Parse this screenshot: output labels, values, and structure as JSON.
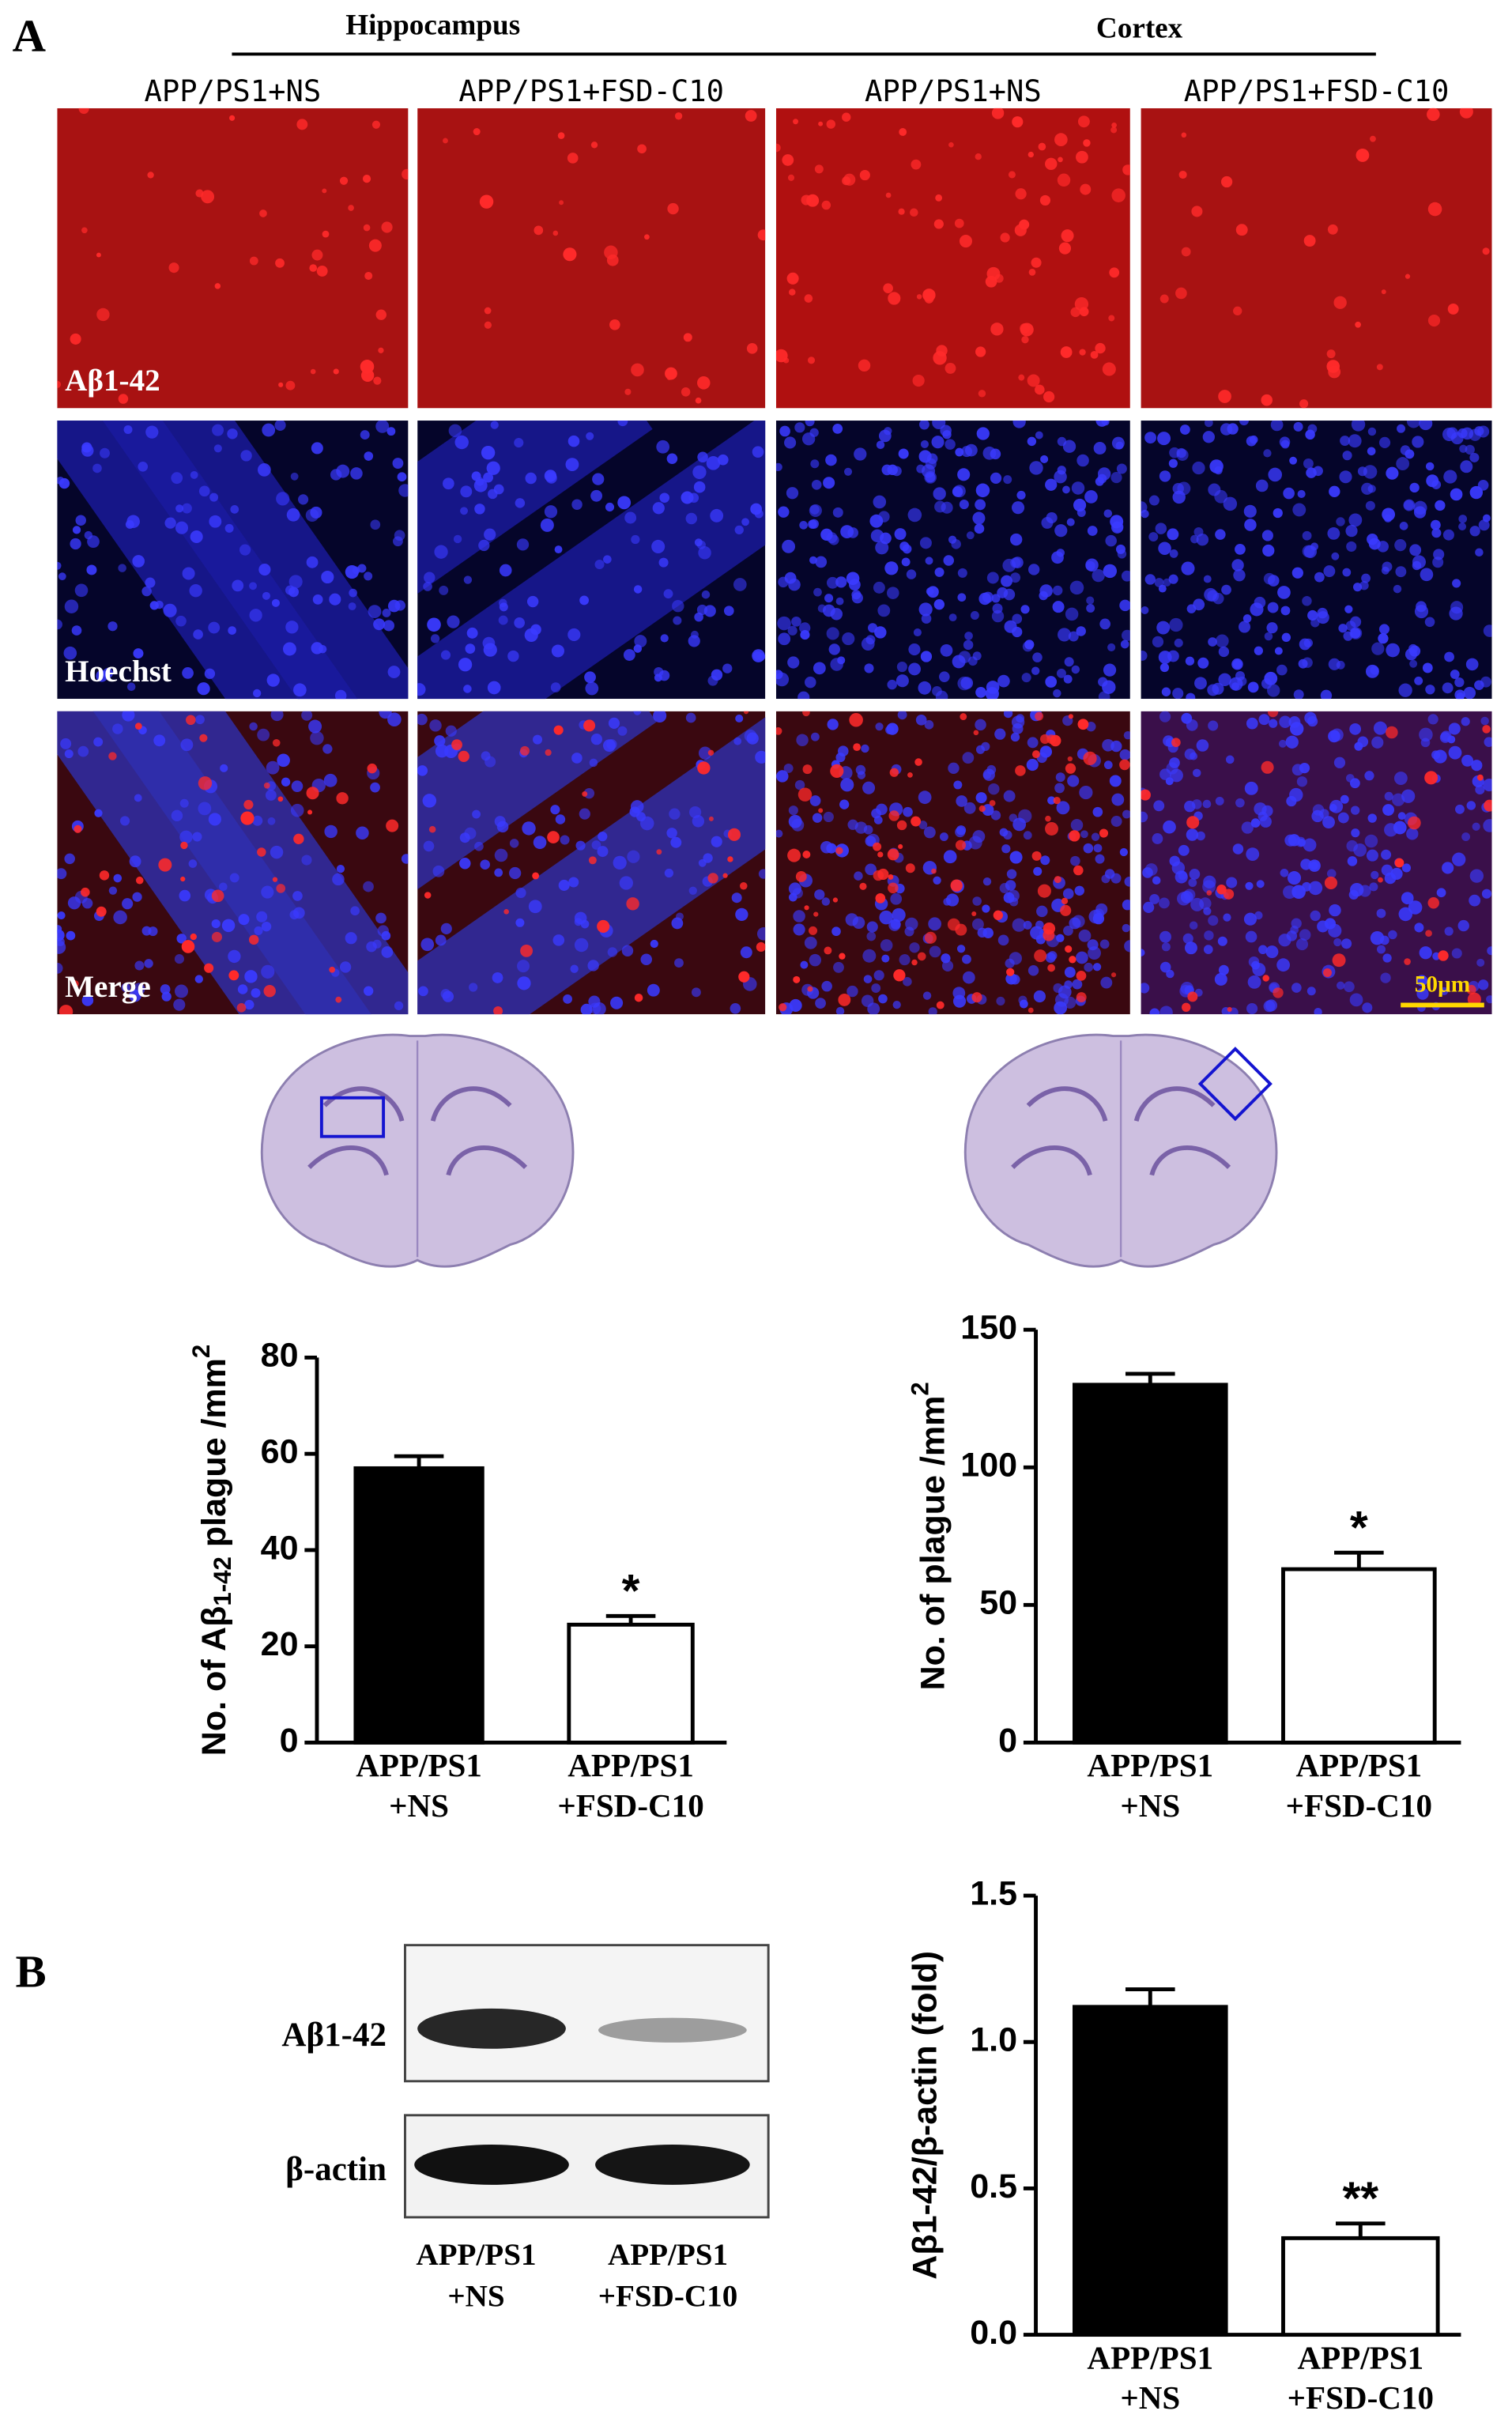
{
  "figure": {
    "panel_a": "A",
    "panel_b": "B",
    "regions": [
      "Hippocampus",
      "Cortex"
    ],
    "columns": [
      "APP/PS1+NS",
      "APP/PS1+FSD-C10",
      "APP/PS1+NS",
      "APP/PS1+FSD-C10"
    ],
    "rows": [
      "Aβ1-42",
      "Hoechst",
      "Merge"
    ],
    "scale_bar": "50μm",
    "blot_rows": [
      "Aβ1-42",
      "β-actin"
    ],
    "blot_lanes": [
      [
        "APP/PS1",
        "+NS"
      ],
      [
        "APP/PS1",
        "+FSD-C10"
      ]
    ]
  },
  "chart_data": [
    {
      "type": "bar",
      "y_label": [
        "No. of Aβ",
        "1-42",
        " plague /mm",
        "2"
      ],
      "categories": [
        [
          "APP/PS1",
          "+NS"
        ],
        [
          "APP/PS1",
          "+FSD-C10"
        ]
      ],
      "values": [
        57,
        24.5
      ],
      "errors": [
        2.5,
        1.8
      ],
      "significance": [
        null,
        "*"
      ],
      "colors": [
        "#000000",
        "#ffffff"
      ],
      "ylim": [
        0,
        80
      ],
      "yticks": [
        0,
        20,
        40,
        60,
        80
      ]
    },
    {
      "type": "bar",
      "y_label": [
        "No. of plague /mm",
        "2"
      ],
      "categories": [
        [
          "APP/PS1",
          "+NS"
        ],
        [
          "APP/PS1",
          "+FSD-C10"
        ]
      ],
      "values": [
        130,
        63
      ],
      "errors": [
        4,
        6
      ],
      "significance": [
        null,
        "*"
      ],
      "colors": [
        "#000000",
        "#ffffff"
      ],
      "ylim": [
        0,
        150
      ],
      "yticks": [
        0,
        50,
        100,
        150
      ]
    },
    {
      "type": "bar",
      "y_label": [
        "Aβ1-42/β-actin (fold)"
      ],
      "categories": [
        [
          "APP/PS1",
          "+NS"
        ],
        [
          "APP/PS1",
          "+FSD-C10"
        ]
      ],
      "values": [
        1.12,
        0.33
      ],
      "errors": [
        0.06,
        0.05
      ],
      "significance": [
        null,
        "**"
      ],
      "colors": [
        "#000000",
        "#ffffff"
      ],
      "ylim": [
        0,
        1.5
      ],
      "yticks": [
        {
          "value": 0,
          "label": "0.0"
        },
        0.5,
        {
          "value": 1,
          "label": "1.0"
        },
        1.5
      ]
    }
  ]
}
